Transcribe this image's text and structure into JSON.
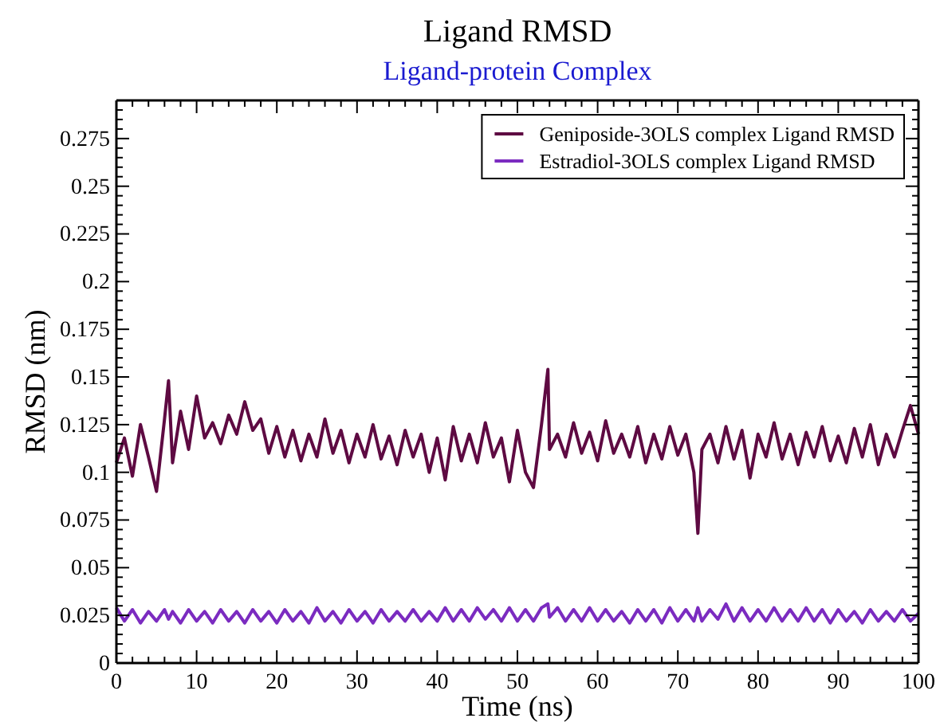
{
  "chart_data": {
    "type": "line",
    "title": "Ligand RMSD",
    "subtitle": "Ligand-protein Complex",
    "xlabel": "Time (ns)",
    "ylabel": "RMSD (nm)",
    "x": [
      0,
      1,
      2,
      3,
      4,
      5,
      6,
      6.5,
      7,
      8,
      9,
      10,
      11,
      12,
      13,
      14,
      15,
      16,
      17,
      18,
      19,
      20,
      21,
      22,
      23,
      24,
      25,
      26,
      27,
      28,
      29,
      30,
      31,
      32,
      33,
      34,
      35,
      36,
      37,
      38,
      39,
      40,
      41,
      42,
      43,
      44,
      45,
      46,
      47,
      48,
      49,
      50,
      51,
      52,
      53,
      53.8,
      54,
      55,
      56,
      57,
      58,
      59,
      60,
      61,
      62,
      63,
      64,
      65,
      66,
      67,
      68,
      69,
      70,
      71,
      72,
      72.5,
      73,
      74,
      75,
      76,
      77,
      78,
      79,
      80,
      81,
      82,
      83,
      84,
      85,
      86,
      87,
      88,
      89,
      90,
      91,
      92,
      93,
      94,
      95,
      96,
      97,
      98,
      99,
      100
    ],
    "series": [
      {
        "name": "Geniposide-3OLS complex Ligand RMSD",
        "color": "#5e0a42",
        "values": [
          0.105,
          0.118,
          0.098,
          0.125,
          0.108,
          0.09,
          0.128,
          0.148,
          0.105,
          0.132,
          0.112,
          0.14,
          0.118,
          0.126,
          0.115,
          0.13,
          0.12,
          0.137,
          0.122,
          0.128,
          0.11,
          0.124,
          0.108,
          0.122,
          0.106,
          0.12,
          0.108,
          0.128,
          0.11,
          0.122,
          0.105,
          0.12,
          0.108,
          0.125,
          0.107,
          0.119,
          0.104,
          0.122,
          0.108,
          0.12,
          0.1,
          0.118,
          0.096,
          0.124,
          0.106,
          0.12,
          0.105,
          0.126,
          0.108,
          0.118,
          0.095,
          0.122,
          0.1,
          0.092,
          0.125,
          0.154,
          0.112,
          0.12,
          0.108,
          0.126,
          0.11,
          0.121,
          0.106,
          0.127,
          0.11,
          0.12,
          0.108,
          0.124,
          0.105,
          0.12,
          0.107,
          0.124,
          0.109,
          0.12,
          0.1,
          0.068,
          0.112,
          0.12,
          0.105,
          0.124,
          0.107,
          0.122,
          0.097,
          0.12,
          0.108,
          0.126,
          0.107,
          0.12,
          0.104,
          0.121,
          0.108,
          0.124,
          0.106,
          0.119,
          0.105,
          0.123,
          0.108,
          0.125,
          0.104,
          0.12,
          0.108,
          0.122,
          0.135,
          0.12
        ]
      },
      {
        "name": "Estradiol-3OLS complex Ligand RMSD",
        "color": "#7b2bc0",
        "values": [
          0.029,
          0.022,
          0.028,
          0.021,
          0.027,
          0.022,
          0.028,
          0.023,
          0.027,
          0.021,
          0.028,
          0.022,
          0.027,
          0.021,
          0.028,
          0.022,
          0.027,
          0.021,
          0.028,
          0.022,
          0.027,
          0.021,
          0.028,
          0.022,
          0.027,
          0.021,
          0.029,
          0.022,
          0.027,
          0.021,
          0.028,
          0.022,
          0.027,
          0.021,
          0.028,
          0.022,
          0.027,
          0.022,
          0.028,
          0.022,
          0.027,
          0.022,
          0.029,
          0.022,
          0.028,
          0.022,
          0.029,
          0.023,
          0.028,
          0.022,
          0.029,
          0.022,
          0.028,
          0.022,
          0.029,
          0.031,
          0.024,
          0.029,
          0.022,
          0.028,
          0.022,
          0.029,
          0.022,
          0.028,
          0.022,
          0.027,
          0.021,
          0.028,
          0.022,
          0.028,
          0.021,
          0.029,
          0.022,
          0.028,
          0.022,
          0.029,
          0.022,
          0.028,
          0.023,
          0.031,
          0.022,
          0.029,
          0.022,
          0.028,
          0.022,
          0.029,
          0.022,
          0.028,
          0.022,
          0.029,
          0.022,
          0.028,
          0.021,
          0.028,
          0.022,
          0.027,
          0.021,
          0.028,
          0.022,
          0.027,
          0.022,
          0.028,
          0.022,
          0.026
        ]
      }
    ],
    "xlim": [
      0,
      100
    ],
    "xticks": [
      0,
      {
        "value": 2,
        "label": null
      },
      {
        "value": 4,
        "label": null
      },
      {
        "value": 6,
        "label": null
      },
      {
        "value": 8,
        "label": null
      },
      10,
      {
        "value": 12,
        "label": null
      },
      {
        "value": 14,
        "label": null
      },
      {
        "value": 16,
        "label": null
      },
      {
        "value": 18,
        "label": null
      },
      20,
      {
        "value": 22,
        "label": null
      },
      {
        "value": 24,
        "label": null
      },
      {
        "value": 26,
        "label": null
      },
      {
        "value": 28,
        "label": null
      },
      30,
      {
        "value": 32,
        "label": null
      },
      {
        "value": 34,
        "label": null
      },
      {
        "value": 36,
        "label": null
      },
      {
        "value": 38,
        "label": null
      },
      40,
      {
        "value": 42,
        "label": null
      },
      {
        "value": 44,
        "label": null
      },
      {
        "value": 46,
        "label": null
      },
      {
        "value": 48,
        "label": null
      },
      50,
      {
        "value": 52,
        "label": null
      },
      {
        "value": 54,
        "label": null
      },
      {
        "value": 56,
        "label": null
      },
      {
        "value": 58,
        "label": null
      },
      60,
      {
        "value": 62,
        "label": null
      },
      {
        "value": 64,
        "label": null
      },
      {
        "value": 66,
        "label": null
      },
      {
        "value": 68,
        "label": null
      },
      70,
      {
        "value": 72,
        "label": null
      },
      {
        "value": 74,
        "label": null
      },
      {
        "value": 76,
        "label": null
      },
      {
        "value": 78,
        "label": null
      },
      80,
      {
        "value": 82,
        "label": null
      },
      {
        "value": 84,
        "label": null
      },
      {
        "value": 86,
        "label": null
      },
      {
        "value": 88,
        "label": null
      },
      90,
      {
        "value": 92,
        "label": null
      },
      {
        "value": 94,
        "label": null
      },
      {
        "value": 96,
        "label": null
      },
      {
        "value": 98,
        "label": null
      },
      100
    ],
    "ylim": [
      0,
      0.295
    ],
    "yticks": [
      0,
      {
        "value": 0.005,
        "label": null
      },
      {
        "value": 0.01,
        "label": null
      },
      {
        "value": 0.015,
        "label": null
      },
      {
        "value": 0.02,
        "label": null
      },
      0.025,
      {
        "value": 0.03,
        "label": null
      },
      {
        "value": 0.035,
        "label": null
      },
      {
        "value": 0.04,
        "label": null
      },
      {
        "value": 0.045,
        "label": null
      },
      0.05,
      {
        "value": 0.055,
        "label": null
      },
      {
        "value": 0.06,
        "label": null
      },
      {
        "value": 0.065,
        "label": null
      },
      {
        "value": 0.07,
        "label": null
      },
      0.075,
      {
        "value": 0.08,
        "label": null
      },
      {
        "value": 0.085,
        "label": null
      },
      {
        "value": 0.09,
        "label": null
      },
      {
        "value": 0.095,
        "label": null
      },
      0.1,
      {
        "value": 0.105,
        "label": null
      },
      {
        "value": 0.11,
        "label": null
      },
      {
        "value": 0.115,
        "label": null
      },
      {
        "value": 0.12,
        "label": null
      },
      0.125,
      {
        "value": 0.13,
        "label": null
      },
      {
        "value": 0.135,
        "label": null
      },
      {
        "value": 0.14,
        "label": null
      },
      {
        "value": 0.145,
        "label": null
      },
      0.15,
      {
        "value": 0.155,
        "label": null
      },
      {
        "value": 0.16,
        "label": null
      },
      {
        "value": 0.165,
        "label": null
      },
      {
        "value": 0.17,
        "label": null
      },
      0.175,
      {
        "value": 0.18,
        "label": null
      },
      {
        "value": 0.185,
        "label": null
      },
      {
        "value": 0.19,
        "label": null
      },
      {
        "value": 0.195,
        "label": null
      },
      0.2,
      {
        "value": 0.205,
        "label": null
      },
      {
        "value": 0.21,
        "label": null
      },
      {
        "value": 0.215,
        "label": null
      },
      {
        "value": 0.22,
        "label": null
      },
      0.225,
      {
        "value": 0.23,
        "label": null
      },
      {
        "value": 0.235,
        "label": null
      },
      {
        "value": 0.24,
        "label": null
      },
      {
        "value": 0.245,
        "label": null
      },
      0.25,
      {
        "value": 0.255,
        "label": null
      },
      {
        "value": 0.26,
        "label": null
      },
      {
        "value": 0.265,
        "label": null
      },
      {
        "value": 0.27,
        "label": null
      },
      0.275,
      {
        "value": 0.28,
        "label": null
      },
      {
        "value": 0.285,
        "label": null
      },
      {
        "value": 0.29,
        "label": null
      }
    ],
    "legend": "top right",
    "grid": false,
    "marker": "none",
    "line_style": "solid"
  }
}
